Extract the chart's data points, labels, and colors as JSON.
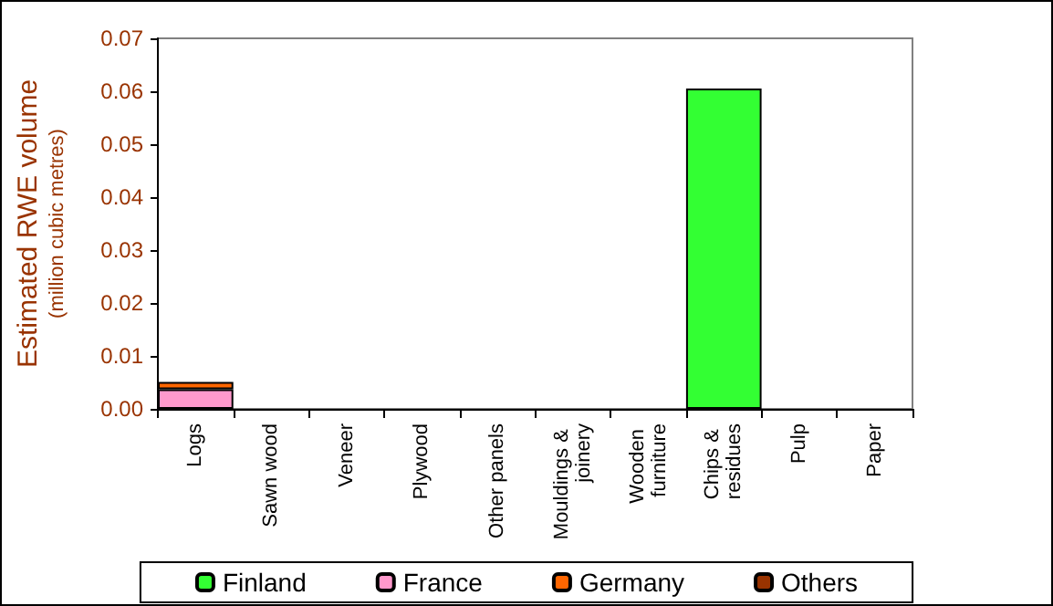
{
  "chart_data": {
    "type": "bar",
    "stacked": true,
    "ylabel": "Estimated RWE volume (million cubic metres)",
    "categories": [
      "Logs",
      "Sawn wood",
      "Veneer",
      "Plywood",
      "Other panels",
      "Mouldings & joinery",
      "Wooden furniture",
      "Chips & residues",
      "Pulp",
      "Paper"
    ],
    "series": [
      {
        "name": "Finland",
        "color": "#33ff33",
        "values": [
          0,
          0,
          0,
          0,
          0,
          0,
          0,
          0.0605,
          0,
          0
        ]
      },
      {
        "name": "France",
        "color": "#ff99cc",
        "values": [
          0.0037,
          0,
          0,
          0,
          0,
          0,
          0,
          0,
          0,
          0
        ]
      },
      {
        "name": "Germany",
        "color": "#ff6600",
        "values": [
          0.0014,
          0,
          0,
          0,
          0,
          0,
          0,
          0,
          0,
          0
        ]
      },
      {
        "name": "Others",
        "color": "#993300",
        "values": [
          0,
          0,
          0,
          0,
          0,
          0,
          0,
          0,
          0,
          0
        ]
      }
    ],
    "ylim": [
      0,
      0.07
    ],
    "yticks": [
      {
        "value": 0,
        "label": "0.00"
      },
      {
        "value": 0.01,
        "label": "0.01"
      },
      {
        "value": 0.02,
        "label": "0.02"
      },
      {
        "value": 0.03,
        "label": "0.03"
      },
      {
        "value": 0.04,
        "label": "0.04"
      },
      {
        "value": 0.05,
        "label": "0.05"
      },
      {
        "value": 0.06,
        "label": "0.06"
      },
      {
        "value": 0.07,
        "label": "0.07"
      }
    ],
    "grid": false,
    "legend": "bottom"
  }
}
